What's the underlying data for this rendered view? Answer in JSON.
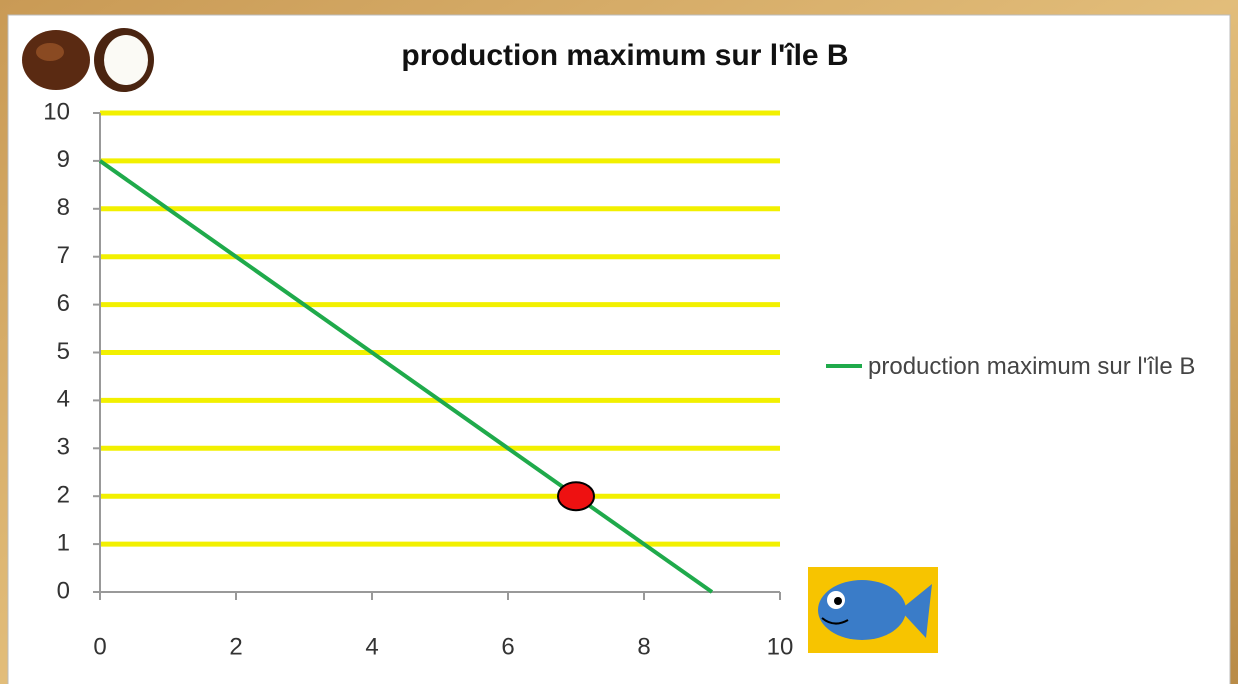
{
  "chart_data": {
    "type": "line",
    "title": "production maximum sur l'île B",
    "x": [
      0,
      9
    ],
    "series": [
      {
        "name": "production maximum sur l'île B",
        "color": "#1faa4b",
        "values": [
          9,
          0
        ]
      }
    ],
    "highlight": {
      "x": 7,
      "y": 2,
      "color": "#ee1111"
    },
    "xlim": [
      0,
      10
    ],
    "xticks": [
      0,
      2,
      4,
      6,
      8,
      10
    ],
    "ylim": [
      0,
      10
    ],
    "yticks": [
      0,
      1,
      2,
      3,
      4,
      5,
      6,
      7,
      8,
      9,
      10
    ],
    "grid": true,
    "grid_color": "#f2f000",
    "legend": "right"
  }
}
